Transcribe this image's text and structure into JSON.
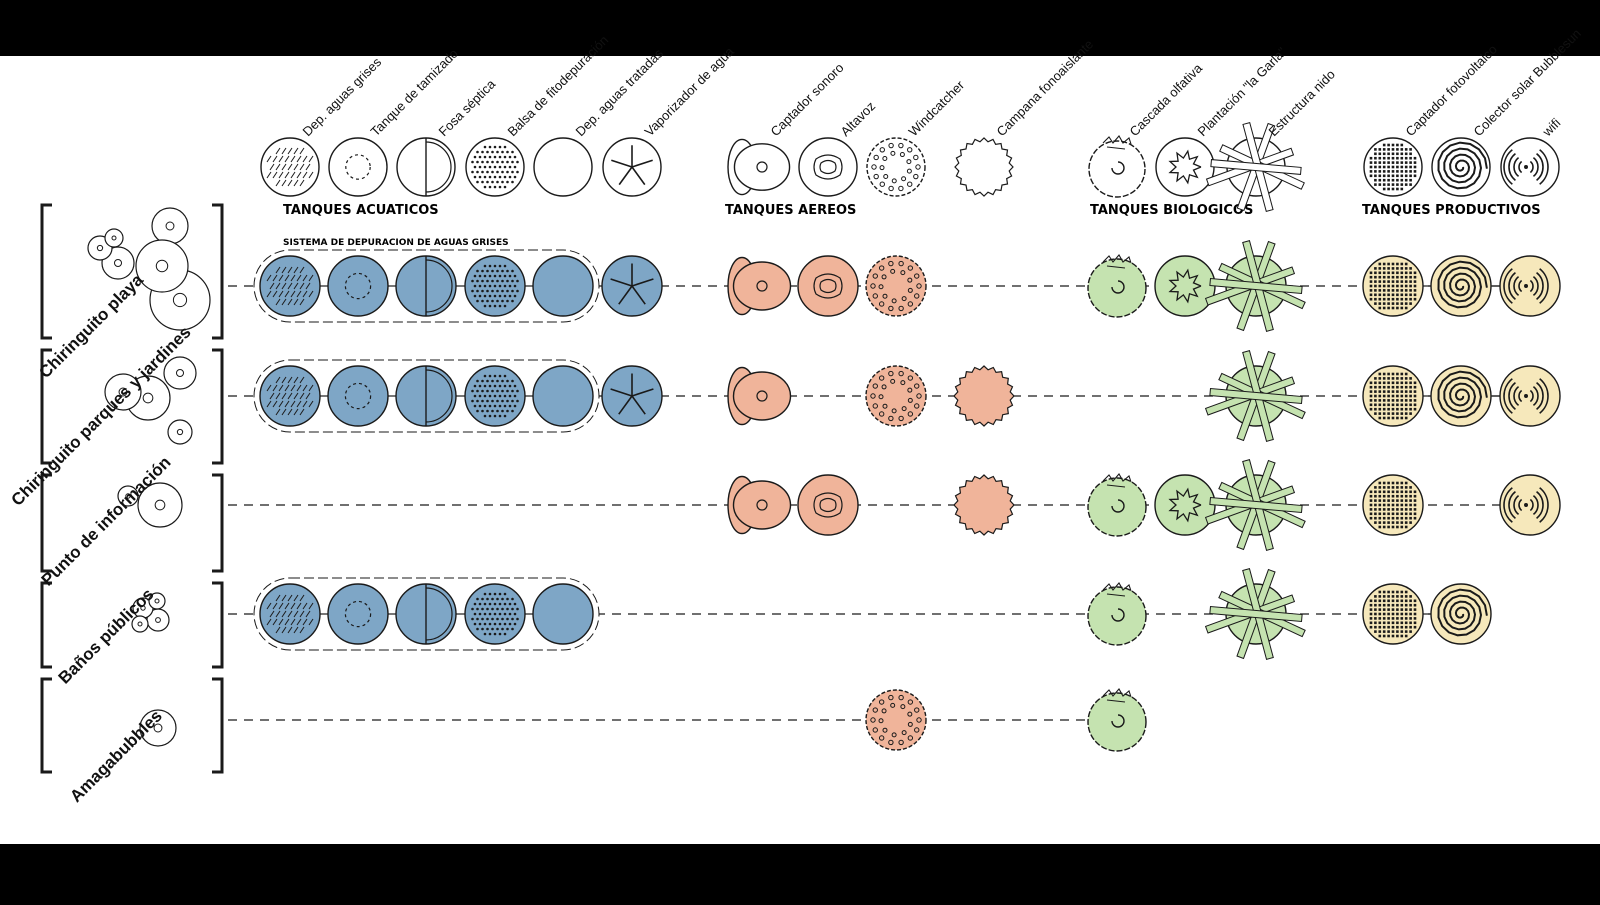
{
  "colors": {
    "agua": "#7ea6c6",
    "aereo": "#f0b49a",
    "biologico": "#c5e3b0",
    "productivo": "#f6e8bb",
    "stroke": "#1a1a1a",
    "background": "#ffffff",
    "frame": "#000000"
  },
  "groups": [
    {
      "title": "TANQUES ACUATICOS",
      "color": "agua"
    },
    {
      "title": "TANQUES AEREOS",
      "color": "aereo"
    },
    {
      "title": "TANQUES BIOLOGICOS",
      "color": "biologico"
    },
    {
      "title": "TANQUES PRODUCTIVOS",
      "color": "productivo"
    }
  ],
  "subsystem_label": "SISTEMA DE DEPURACION DE AGUAS GRISES",
  "elements": [
    {
      "id": "dep_grises",
      "label": "Dep. aguas grises",
      "group": "agua",
      "icon": "hatched-circle-icon"
    },
    {
      "id": "tanque_tamizado",
      "label": "Tanque de tamizado",
      "group": "agua",
      "icon": "dashed-ring-icon"
    },
    {
      "id": "fosa",
      "label": "Fosa séptica",
      "group": "agua",
      "icon": "half-circle-icon"
    },
    {
      "id": "balsa",
      "label": "Balsa de fitodepuración",
      "group": "agua",
      "icon": "dotted-circle-icon"
    },
    {
      "id": "dep_tratadas",
      "label": "Dep. aguas tratadas",
      "group": "agua",
      "icon": "plain-circle-icon"
    },
    {
      "id": "vaporizador",
      "label": "Vaporizador de agua",
      "group": "agua",
      "icon": "star-circle-icon"
    },
    {
      "id": "captador_sonoro",
      "label": "Captador sonoro",
      "group": "aereo",
      "icon": "ear-icon"
    },
    {
      "id": "altavoz",
      "label": "Altavoz",
      "group": "aereo",
      "icon": "speaker-icon"
    },
    {
      "id": "windcatcher",
      "label": "Windcatcher",
      "group": "aereo",
      "icon": "ring-dots-icon"
    },
    {
      "id": "campana",
      "label": "Campana fonoaislante",
      "group": "aereo",
      "icon": "serrated-circle-icon"
    },
    {
      "id": "cascada",
      "label": "Cascada olfativa",
      "group": "biologico",
      "icon": "cascade-icon"
    },
    {
      "id": "plantacion",
      "label": "Plantación \"la Garla\"",
      "group": "biologico",
      "icon": "plant-icon"
    },
    {
      "id": "estructura",
      "label": "Estructura nido",
      "group": "biologico",
      "icon": "nest-icon"
    },
    {
      "id": "fotovoltaico",
      "label": "Captador fotovoltaico",
      "group": "productivo",
      "icon": "grid-circle-icon"
    },
    {
      "id": "colector",
      "label": "Colector solar Bubblesun",
      "group": "productivo",
      "icon": "spiral-icon"
    },
    {
      "id": "wifi",
      "label": "wifi",
      "group": "productivo",
      "icon": "wifi-icon"
    }
  ],
  "rows": [
    {
      "label": "Chiringuito playa",
      "elements": [
        "dep_grises",
        "tanque_tamizado",
        "fosa",
        "balsa",
        "dep_tratadas",
        "vaporizador",
        "captador_sonoro",
        "altavoz",
        "windcatcher",
        "cascada",
        "plantacion",
        "estructura",
        "fotovoltaico",
        "colector",
        "wifi"
      ],
      "depuracion": true
    },
    {
      "label": "Chiringuito parques y jardines",
      "elements": [
        "dep_grises",
        "tanque_tamizado",
        "fosa",
        "balsa",
        "dep_tratadas",
        "vaporizador",
        "captador_sonoro",
        "windcatcher",
        "campana",
        "estructura",
        "fotovoltaico",
        "colector",
        "wifi"
      ],
      "depuracion": true
    },
    {
      "label": "Punto de información",
      "elements": [
        "captador_sonoro",
        "altavoz",
        "campana",
        "cascada",
        "plantacion",
        "estructura",
        "fotovoltaico",
        "wifi"
      ],
      "depuracion": false
    },
    {
      "label": "Baños públicos",
      "elements": [
        "dep_grises",
        "tanque_tamizado",
        "fosa",
        "balsa",
        "dep_tratadas",
        "cascada",
        "estructura",
        "fotovoltaico",
        "colector"
      ],
      "depuracion": true
    },
    {
      "label": "Amagabubbles",
      "elements": [
        "windcatcher",
        "cascada"
      ],
      "depuracion": false
    }
  ]
}
